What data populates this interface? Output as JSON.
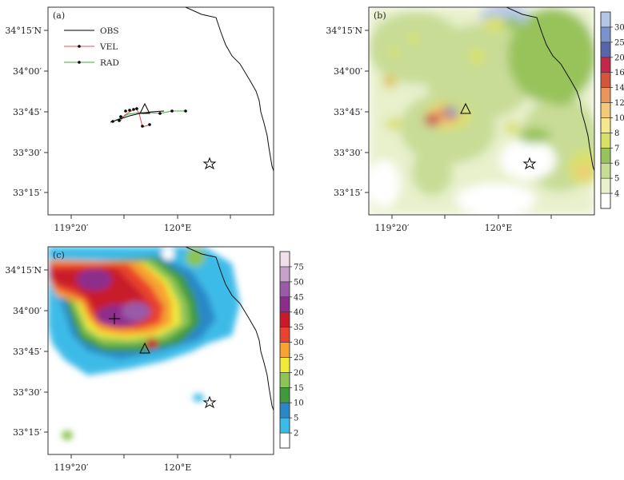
{
  "panels": [
    {
      "id": "a",
      "tag": "(a)",
      "type": "track",
      "y_ticks": [
        "34°15′N",
        "34°00′",
        "33°45′",
        "33°30′",
        "33°15′"
      ],
      "x_ticks": [
        "119°20′",
        "120°E"
      ],
      "legend": [
        {
          "label": "OBS",
          "color": "#000000",
          "marker": "none"
        },
        {
          "label": "VEL",
          "color": "#e05050",
          "marker": "dot"
        },
        {
          "label": "RAD",
          "color": "#46a846",
          "marker": "dot"
        }
      ],
      "markers": [
        "triangle",
        "star"
      ]
    },
    {
      "id": "b",
      "tag": "(b)",
      "type": "field",
      "y_ticks": [
        "34°15′N",
        "34°00′",
        "33°45′",
        "33°30′",
        "33°15′"
      ],
      "x_ticks": [
        "119°20′",
        "120°E"
      ],
      "colorbar": {
        "labels": [
          "4",
          "5",
          "6",
          "7",
          "8",
          "10",
          "12",
          "14",
          "16",
          "20",
          "25",
          "30"
        ],
        "colors": [
          "#ffffff",
          "#e8f0cc",
          "#c8dc96",
          "#98c25a",
          "#d9e06a",
          "#f5e88c",
          "#f3c97a",
          "#e9955c",
          "#d2553c",
          "#c3284a",
          "#5865a8",
          "#7a93cc",
          "#b4c6e6"
        ]
      }
    },
    {
      "id": "c",
      "tag": "(c)",
      "type": "field",
      "y_ticks": [
        "34°15′N",
        "34°00′",
        "33°45′",
        "33°30′",
        "33°15′"
      ],
      "x_ticks": [
        "119°20′",
        "120°E"
      ],
      "colorbar": {
        "labels": [
          "2",
          "5",
          "10",
          "15",
          "20",
          "25",
          "30",
          "35",
          "40",
          "45",
          "50",
          "75"
        ],
        "colors": [
          "#ffffff",
          "#3dbbe8",
          "#2a88c8",
          "#3e9a3c",
          "#8cc456",
          "#f2ea3a",
          "#f7a233",
          "#e8432e",
          "#c81a2a",
          "#8c2d8c",
          "#9a5aa8",
          "#c8a0cc",
          "#f0e0ec"
        ]
      }
    }
  ]
}
